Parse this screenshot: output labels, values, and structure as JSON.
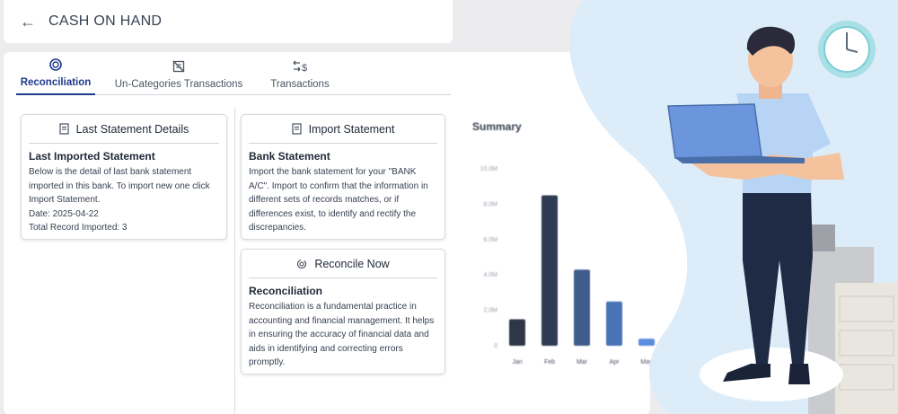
{
  "header": {
    "back_icon": "arrow-left-icon",
    "title": "CASH ON HAND"
  },
  "tabs": [
    {
      "label": "Reconciliation",
      "icon": "refresh-circle-icon",
      "active": true
    },
    {
      "label": "Un-Categories Transactions",
      "icon": "list-crossed-icon",
      "active": false
    },
    {
      "label": "Transactions",
      "icon": "transfer-dollar-icon",
      "active": false
    }
  ],
  "last_statement": {
    "heading": "Last Statement Details",
    "subheading": "Last Imported Statement",
    "text": "Below is the detail of last bank statement imported in this bank. To import new one click Import Statement.",
    "date": "Date: 2025-04-22",
    "records": "Total Record Imported: 3"
  },
  "import_statement": {
    "heading": "Import Statement",
    "subheading": "Bank Statement",
    "text": "Import the bank statement for your \"BANK A/C\". Import to confirm that the information in different sets of records matches, or if differences exist, to identify and rectify the discrepancies."
  },
  "reconcile": {
    "heading": "Reconcile Now",
    "subheading": "Reconciliation",
    "text": "Reconciliation is a fundamental practice in accounting and financial management. It helps in ensuring the accuracy of financial data and aids in identifying and correcting errors promptly."
  },
  "summary": {
    "title": "Summary"
  },
  "chart_data": {
    "type": "bar",
    "title": "Summary",
    "categories": [
      "Jan",
      "Feb",
      "Mar",
      "Apr",
      "May"
    ],
    "values": [
      1.5,
      8.5,
      4.3,
      2.5,
      0.4
    ],
    "ylim": [
      0,
      10
    ],
    "yticks": [
      "0",
      "2.0M",
      "4.0M",
      "6.0M",
      "8.0M",
      "10.0M"
    ],
    "bar_colors": [
      "#2d3748",
      "#2f3b52",
      "#3f5d8c",
      "#4a73b5",
      "#5b8ddf"
    ],
    "grid": false
  },
  "colors": {
    "accent": "#1e3a8a",
    "panel_bg": "#ffffff",
    "page_bg": "#ececee",
    "blob": "#dcecf9"
  }
}
